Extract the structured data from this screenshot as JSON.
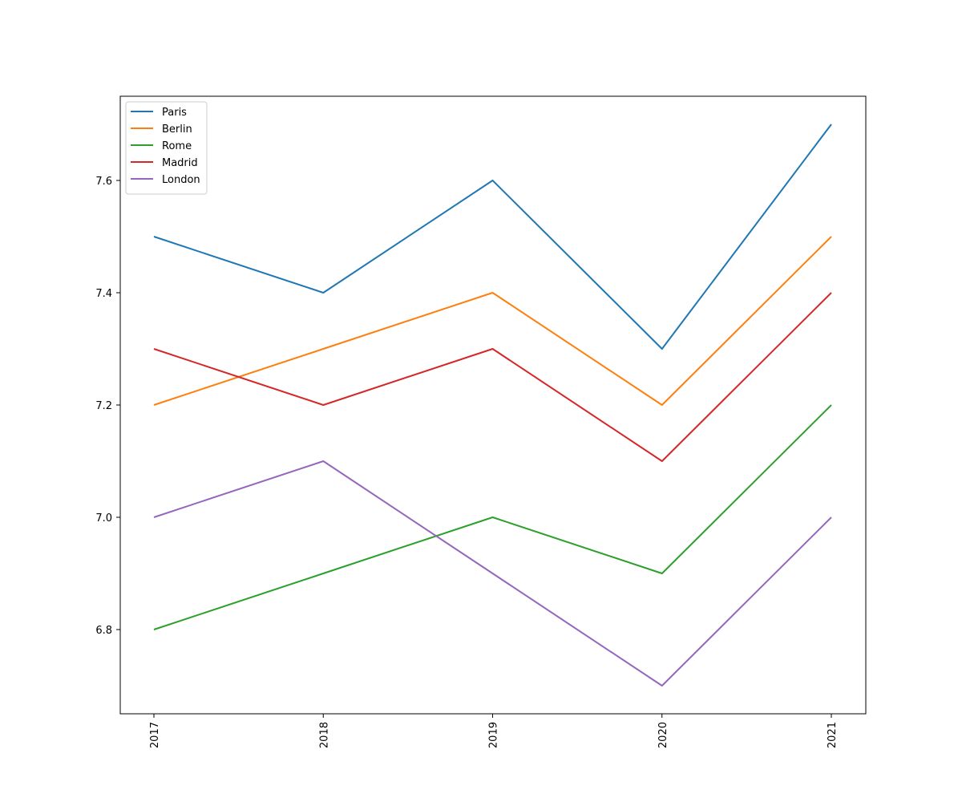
{
  "chart_data": {
    "type": "line",
    "x": [
      "2017",
      "2018",
      "2019",
      "2020",
      "2021"
    ],
    "yticks": [
      "6.8",
      "7.0",
      "7.2",
      "7.4",
      "7.6"
    ],
    "ylim": [
      6.65,
      7.75
    ],
    "grid": false,
    "legend_position": "top-left",
    "series": [
      {
        "name": "Paris",
        "color": "#1f77b4",
        "values": [
          7.5,
          7.4,
          7.6,
          7.3,
          7.7
        ]
      },
      {
        "name": "Berlin",
        "color": "#ff7f0e",
        "values": [
          7.2,
          7.3,
          7.4,
          7.2,
          7.5
        ]
      },
      {
        "name": "Rome",
        "color": "#2ca02c",
        "values": [
          6.8,
          6.9,
          7.0,
          6.9,
          7.2
        ]
      },
      {
        "name": "Madrid",
        "color": "#d62728",
        "values": [
          7.3,
          7.2,
          7.3,
          7.1,
          7.4
        ]
      },
      {
        "name": "London",
        "color": "#9467bd",
        "values": [
          7.0,
          7.1,
          6.9,
          6.7,
          7.0
        ]
      }
    ]
  }
}
